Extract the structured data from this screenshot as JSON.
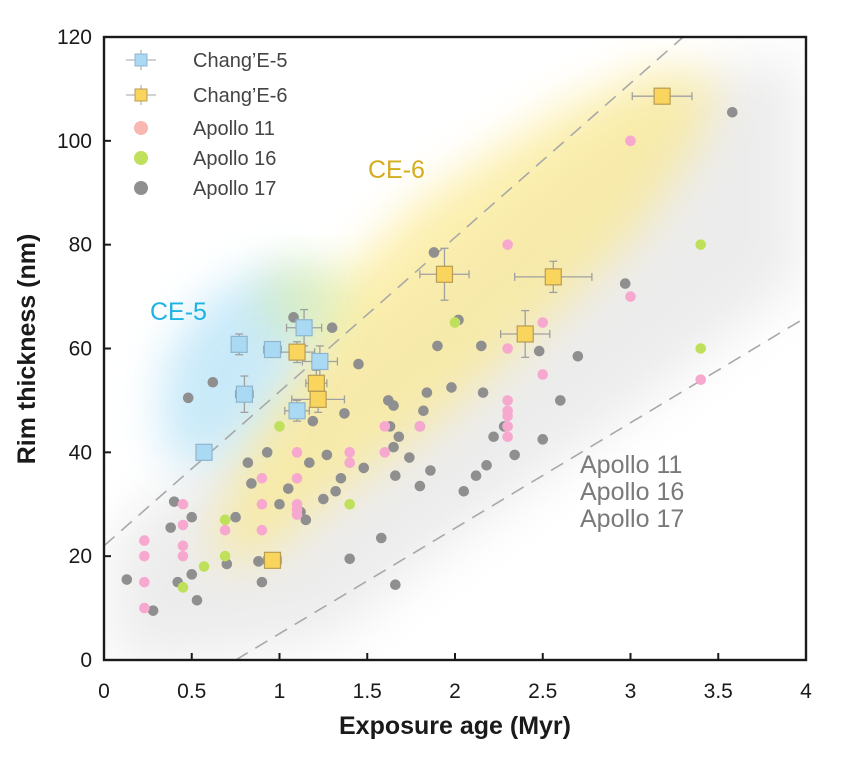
{
  "chart_data": {
    "type": "scatter",
    "xlabel": "Exposure age (Myr)",
    "ylabel": "Rim thickness (nm)",
    "xlim": [
      0,
      4
    ],
    "ylim": [
      0,
      120
    ],
    "x_ticks": [
      "0",
      "0.5",
      "1",
      "1.5",
      "2",
      "2.5",
      "3",
      "3.5",
      "4"
    ],
    "y_ticks": [
      "0",
      "20",
      "40",
      "60",
      "80",
      "100",
      "120"
    ],
    "grid": false,
    "legend_position": "top-left",
    "colors": {
      "ce5": "#a9d9f3",
      "ce5_edge": "#8fb5cc",
      "ce6": "#f9d55d",
      "ce6_edge": "#b79d55",
      "apollo11": "#f7a8cf",
      "apollo16": "#bfe05a",
      "apollo17": "#8f8f8f",
      "ce5_text": "#1fb2e3",
      "ce6_text": "#d4ad1f",
      "apollo_text": "#7a7a7a"
    },
    "annotations": [
      {
        "id": "ce5",
        "text": "CE-5"
      },
      {
        "id": "ce6",
        "text": "CE-6"
      },
      {
        "id": "apollo11",
        "text": "Apollo 11"
      },
      {
        "id": "apollo16",
        "text": "Apollo 16"
      },
      {
        "id": "apollo17",
        "text": "Apollo 17"
      }
    ],
    "reference_lines": [
      {
        "x": [
          0,
          3.3
        ],
        "y": [
          22,
          120
        ]
      },
      {
        "x": [
          0.75,
          4
        ],
        "y": [
          0,
          66
        ]
      }
    ],
    "series": [
      {
        "name": "Chang'E-5",
        "label": "Chang’E-5",
        "marker": "square-errorbar",
        "points": [
          {
            "x": 0.57,
            "y": 40,
            "xerr": 0.03,
            "yerr": 1.0
          },
          {
            "x": 0.77,
            "y": 60.8,
            "xerr": 0.04,
            "yerr": 2.0
          },
          {
            "x": 0.8,
            "y": 51.2,
            "xerr": 0.05,
            "yerr": 3.5
          },
          {
            "x": 0.96,
            "y": 59.8,
            "xerr": 0.05,
            "yerr": 1.0
          },
          {
            "x": 1.1,
            "y": 48.0,
            "xerr": 0.07,
            "yerr": 2.0
          },
          {
            "x": 1.14,
            "y": 64.0,
            "xerr": 0.1,
            "yerr": 3.5
          },
          {
            "x": 1.23,
            "y": 57.5,
            "xerr": 0.1,
            "yerr": 3.0
          }
        ]
      },
      {
        "name": "Chang'E-6",
        "label": "Chang’E-6",
        "marker": "square-errorbar",
        "points": [
          {
            "x": 0.96,
            "y": 19.2,
            "xerr": 0.05,
            "yerr": 1.0
          },
          {
            "x": 1.1,
            "y": 59.3,
            "xerr": 0.1,
            "yerr": 2.0
          },
          {
            "x": 1.21,
            "y": 53.3,
            "xerr": 0.06,
            "yerr": 2.5
          },
          {
            "x": 1.22,
            "y": 50.2,
            "xerr": 0.15,
            "yerr": 2.5
          },
          {
            "x": 1.94,
            "y": 74.3,
            "xerr": 0.14,
            "yerr": 5.0
          },
          {
            "x": 2.4,
            "y": 62.8,
            "xerr": 0.14,
            "yerr": 4.5
          },
          {
            "x": 2.56,
            "y": 73.8,
            "xerr": 0.22,
            "yerr": 3.0
          },
          {
            "x": 3.18,
            "y": 108.6,
            "xerr": 0.17,
            "yerr": 1.5
          }
        ]
      },
      {
        "name": "Apollo 11",
        "label": "Apollo 11",
        "marker": "circle",
        "points": [
          {
            "x": 0.23,
            "y": 10
          },
          {
            "x": 0.23,
            "y": 15
          },
          {
            "x": 0.23,
            "y": 20
          },
          {
            "x": 0.23,
            "y": 23
          },
          {
            "x": 0.45,
            "y": 30
          },
          {
            "x": 0.45,
            "y": 26
          },
          {
            "x": 0.45,
            "y": 22
          },
          {
            "x": 0.45,
            "y": 20
          },
          {
            "x": 0.69,
            "y": 25
          },
          {
            "x": 0.9,
            "y": 35
          },
          {
            "x": 0.9,
            "y": 30
          },
          {
            "x": 0.9,
            "y": 25
          },
          {
            "x": 1.1,
            "y": 40
          },
          {
            "x": 1.1,
            "y": 35
          },
          {
            "x": 1.1,
            "y": 30
          },
          {
            "x": 1.1,
            "y": 29
          },
          {
            "x": 1.1,
            "y": 28
          },
          {
            "x": 1.4,
            "y": 40
          },
          {
            "x": 1.4,
            "y": 38
          },
          {
            "x": 1.6,
            "y": 45
          },
          {
            "x": 1.6,
            "y": 40
          },
          {
            "x": 1.8,
            "y": 45
          },
          {
            "x": 2.3,
            "y": 80
          },
          {
            "x": 2.3,
            "y": 60
          },
          {
            "x": 2.3,
            "y": 50
          },
          {
            "x": 2.3,
            "y": 48
          },
          {
            "x": 2.3,
            "y": 47
          },
          {
            "x": 2.3,
            "y": 45
          },
          {
            "x": 2.3,
            "y": 43
          },
          {
            "x": 2.5,
            "y": 65
          },
          {
            "x": 2.5,
            "y": 55
          },
          {
            "x": 3.0,
            "y": 100
          },
          {
            "x": 3.0,
            "y": 70
          },
          {
            "x": 3.4,
            "y": 54
          }
        ]
      },
      {
        "name": "Apollo 16",
        "label": "Apollo 16",
        "marker": "circle",
        "points": [
          {
            "x": 0.45,
            "y": 14
          },
          {
            "x": 0.57,
            "y": 18
          },
          {
            "x": 0.69,
            "y": 27
          },
          {
            "x": 0.69,
            "y": 20
          },
          {
            "x": 1.0,
            "y": 45
          },
          {
            "x": 1.4,
            "y": 30
          },
          {
            "x": 2.0,
            "y": 65
          },
          {
            "x": 3.4,
            "y": 80
          },
          {
            "x": 3.4,
            "y": 60
          }
        ]
      },
      {
        "name": "Apollo 17",
        "label": "Apollo 17",
        "marker": "circle",
        "points": [
          {
            "x": 0.13,
            "y": 15.5
          },
          {
            "x": 0.28,
            "y": 9.5
          },
          {
            "x": 0.38,
            "y": 25.5
          },
          {
            "x": 0.4,
            "y": 30.5
          },
          {
            "x": 0.42,
            "y": 15
          },
          {
            "x": 0.48,
            "y": 50.5
          },
          {
            "x": 0.5,
            "y": 27.5
          },
          {
            "x": 0.5,
            "y": 16.5
          },
          {
            "x": 0.53,
            "y": 11.5
          },
          {
            "x": 0.62,
            "y": 53.5
          },
          {
            "x": 0.7,
            "y": 18.5
          },
          {
            "x": 0.75,
            "y": 27.5
          },
          {
            "x": 0.82,
            "y": 38
          },
          {
            "x": 0.84,
            "y": 34
          },
          {
            "x": 0.88,
            "y": 19
          },
          {
            "x": 0.9,
            "y": 15
          },
          {
            "x": 0.93,
            "y": 40
          },
          {
            "x": 1.0,
            "y": 30
          },
          {
            "x": 1.05,
            "y": 33
          },
          {
            "x": 1.08,
            "y": 66
          },
          {
            "x": 1.12,
            "y": 28.5
          },
          {
            "x": 1.15,
            "y": 27
          },
          {
            "x": 1.17,
            "y": 38
          },
          {
            "x": 1.19,
            "y": 46
          },
          {
            "x": 1.25,
            "y": 31
          },
          {
            "x": 1.27,
            "y": 39.5
          },
          {
            "x": 1.3,
            "y": 64
          },
          {
            "x": 1.32,
            "y": 32.5
          },
          {
            "x": 1.35,
            "y": 35
          },
          {
            "x": 1.37,
            "y": 47.5
          },
          {
            "x": 1.4,
            "y": 19.5
          },
          {
            "x": 1.45,
            "y": 57
          },
          {
            "x": 1.48,
            "y": 37
          },
          {
            "x": 1.58,
            "y": 23.5
          },
          {
            "x": 1.62,
            "y": 50
          },
          {
            "x": 1.63,
            "y": 45
          },
          {
            "x": 1.65,
            "y": 41
          },
          {
            "x": 1.65,
            "y": 49
          },
          {
            "x": 1.66,
            "y": 35.5
          },
          {
            "x": 1.66,
            "y": 14.5
          },
          {
            "x": 1.68,
            "y": 43
          },
          {
            "x": 1.74,
            "y": 39
          },
          {
            "x": 1.8,
            "y": 33.5
          },
          {
            "x": 1.8,
            "y": 45
          },
          {
            "x": 1.82,
            "y": 48
          },
          {
            "x": 1.84,
            "y": 51.5
          },
          {
            "x": 1.86,
            "y": 36.5
          },
          {
            "x": 1.88,
            "y": 78.5
          },
          {
            "x": 1.9,
            "y": 60.5
          },
          {
            "x": 1.98,
            "y": 52.5
          },
          {
            "x": 2.02,
            "y": 65.5
          },
          {
            "x": 2.05,
            "y": 32.5
          },
          {
            "x": 2.12,
            "y": 35.5
          },
          {
            "x": 2.15,
            "y": 60.5
          },
          {
            "x": 2.16,
            "y": 51.5
          },
          {
            "x": 2.18,
            "y": 37.5
          },
          {
            "x": 2.22,
            "y": 43
          },
          {
            "x": 2.28,
            "y": 45
          },
          {
            "x": 2.34,
            "y": 39.5
          },
          {
            "x": 2.48,
            "y": 59.5
          },
          {
            "x": 2.5,
            "y": 42.5
          },
          {
            "x": 2.6,
            "y": 50
          },
          {
            "x": 2.7,
            "y": 58.5
          },
          {
            "x": 2.97,
            "y": 72.5
          },
          {
            "x": 3.58,
            "y": 105.5
          }
        ]
      }
    ]
  }
}
